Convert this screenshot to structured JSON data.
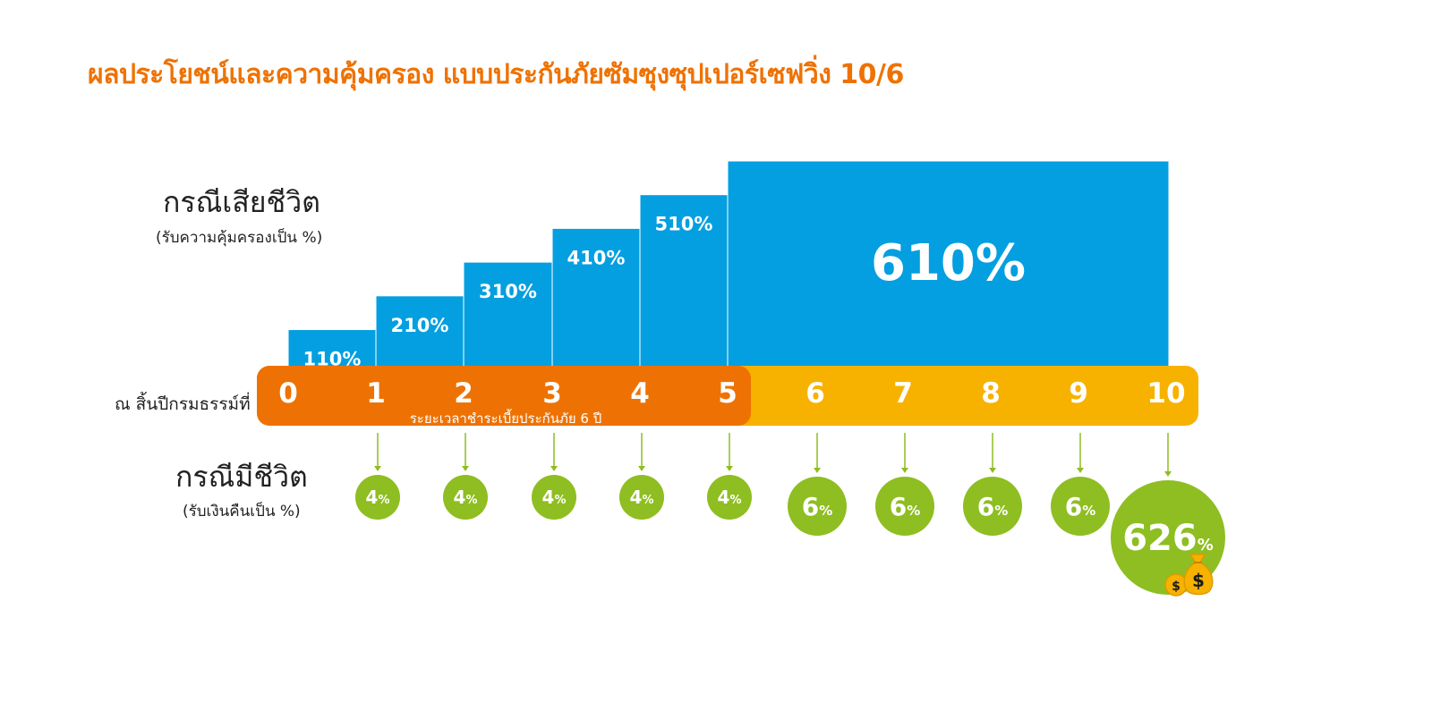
{
  "title": "ผลประโยชน์และความคุ้มครอง แบบประกันภัยซัมซุงซุปเปอร์เซฟวิ่ง 10/6",
  "death_label": "กรณีเสียชีวิต",
  "death_sublabel": "(รับความคุ้มครองเป็น %)",
  "timeline_label": "ณ สิ้นปีกรมธรรม์ที่",
  "premium_note": "ระยะเวลาชำระเบี้ยประกันภัย 6 ปี",
  "living_label": "กรณีมีชีวิต",
  "living_sublabel": "(รับเงินคืนเป็น %)",
  "colors": {
    "title": "#ee7203",
    "death_bar": "#049fe0",
    "premium_period": "#ee7203",
    "after_period": "#f7b200",
    "payout_circle": "#8ebe21",
    "arrow": "#8ebe21",
    "money_bag": "#f7b200"
  },
  "icons": {
    "money_bag": "money-bag-icon"
  },
  "chart_data": [
    {
      "type": "bar",
      "title": "กรณีเสียชีวิต",
      "unit": "%",
      "categories": [
        "0-1",
        "1-2",
        "2-3",
        "3-4",
        "4-5",
        "5-10"
      ],
      "values": [
        110,
        210,
        310,
        410,
        510,
        610
      ],
      "labels": [
        "110%",
        "210%",
        "310%",
        "410%",
        "510%",
        "610%"
      ]
    },
    {
      "type": "timeline",
      "ticks": [
        "0",
        "1",
        "2",
        "3",
        "4",
        "5",
        "6",
        "7",
        "8",
        "9",
        "10"
      ],
      "premium_years": 6
    },
    {
      "type": "scatter",
      "title": "กรณีมีชีวิต",
      "unit": "%",
      "x": [
        1,
        2,
        3,
        4,
        5,
        6,
        7,
        8,
        9,
        10
      ],
      "values": [
        4,
        4,
        4,
        4,
        4,
        6,
        6,
        6,
        6,
        626
      ],
      "value_labels": [
        "4",
        "4",
        "4",
        "4",
        "4",
        "6",
        "6",
        "6",
        "6",
        "626"
      ],
      "suffix": "%"
    }
  ]
}
